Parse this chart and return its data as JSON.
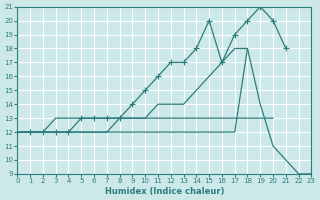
{
  "xlabel": "Humidex (Indice chaleur)",
  "bg_color": "#cce8e8",
  "grid_color": "#ffffff",
  "line_color": "#2d7d7d",
  "xmin": 0,
  "xmax": 23,
  "ymin": 9,
  "ymax": 21,
  "xticks": [
    0,
    1,
    2,
    3,
    4,
    5,
    6,
    7,
    8,
    9,
    10,
    11,
    12,
    13,
    14,
    15,
    16,
    17,
    18,
    19,
    20,
    21,
    22,
    23
  ],
  "yticks": [
    9,
    10,
    11,
    12,
    13,
    14,
    15,
    16,
    17,
    18,
    19,
    20,
    21
  ],
  "lines": [
    {
      "x": [
        0,
        1,
        2,
        3,
        4,
        5,
        6,
        7,
        8,
        9,
        10,
        11,
        12,
        13,
        14,
        15,
        16,
        17,
        18,
        19,
        20,
        21
      ],
      "y": [
        12,
        12,
        12,
        12,
        12,
        13,
        13,
        13,
        13,
        14,
        15,
        16,
        17,
        17,
        18,
        20,
        17,
        19,
        20,
        21,
        20,
        18
      ],
      "has_markers": true
    },
    {
      "x": [
        0,
        1,
        2,
        3,
        4,
        5,
        6,
        7,
        8,
        9,
        10,
        11,
        12,
        13,
        14,
        15,
        16,
        17,
        18,
        19,
        20,
        21,
        22,
        23
      ],
      "y": [
        12,
        12,
        12,
        12,
        12,
        12,
        12,
        12,
        13,
        13,
        13,
        14,
        14,
        14,
        15,
        16,
        17,
        18,
        18,
        14,
        11,
        10,
        9,
        9
      ],
      "has_markers": false
    },
    {
      "x": [
        0,
        1,
        2,
        3,
        4,
        5,
        6,
        7,
        8,
        9,
        10,
        11,
        12,
        13,
        14,
        15,
        16,
        17,
        18,
        19,
        20
      ],
      "y": [
        12,
        12,
        12,
        13,
        13,
        13,
        13,
        13,
        13,
        13,
        13,
        13,
        13,
        13,
        13,
        13,
        13,
        13,
        13,
        13,
        13
      ],
      "has_markers": false
    },
    {
      "x": [
        0,
        1,
        2,
        3,
        4,
        5,
        6,
        7,
        8,
        9,
        10,
        11,
        12,
        13,
        14,
        15,
        16,
        17,
        18
      ],
      "y": [
        12,
        12,
        12,
        12,
        12,
        12,
        12,
        12,
        12,
        12,
        12,
        12,
        12,
        12,
        12,
        12,
        12,
        12,
        18
      ],
      "has_markers": false
    }
  ]
}
